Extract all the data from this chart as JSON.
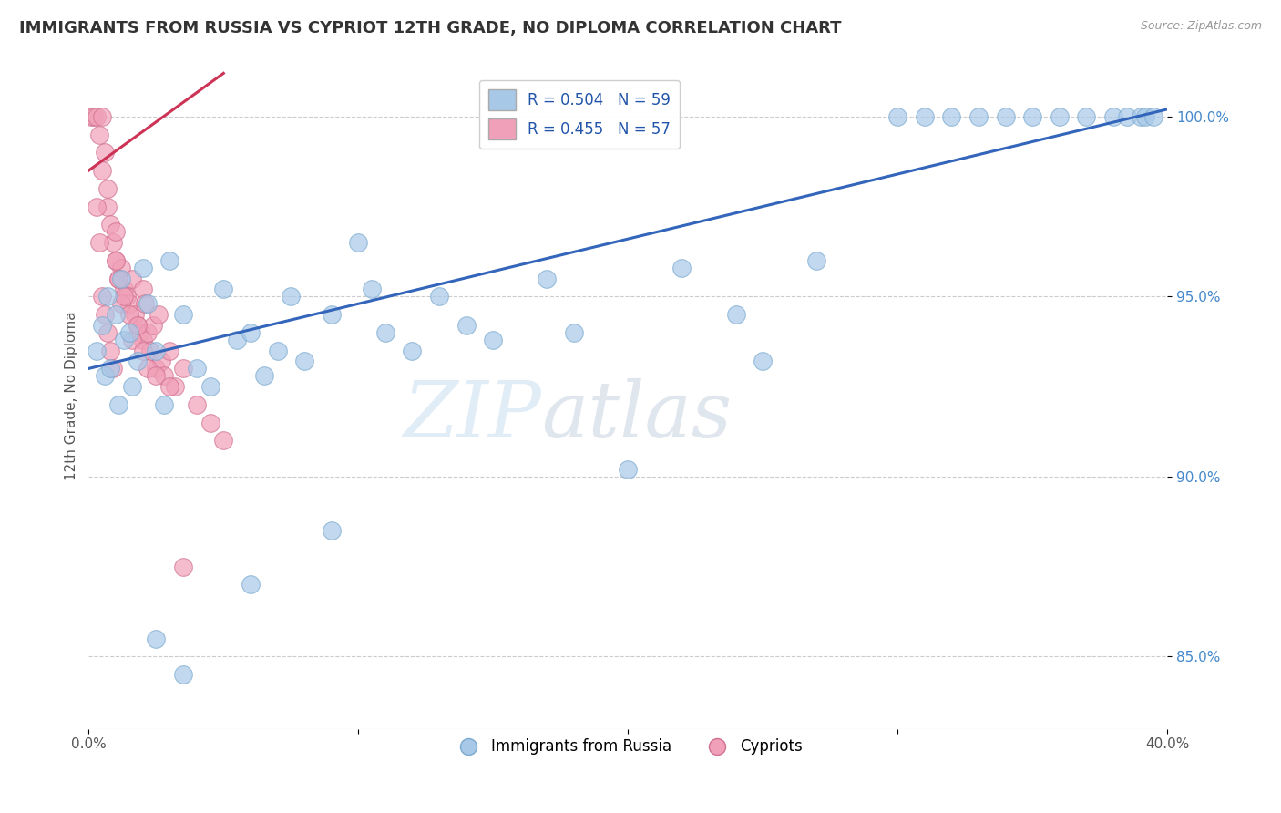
{
  "title": "IMMIGRANTS FROM RUSSIA VS CYPRIOT 12TH GRADE, NO DIPLOMA CORRELATION CHART",
  "source": "Source: ZipAtlas.com",
  "ylabel": "12th Grade, No Diploma",
  "xmin": 0.0,
  "xmax": 40.0,
  "ymin": 83.0,
  "ymax": 101.5,
  "yticks": [
    85.0,
    90.0,
    95.0,
    100.0
  ],
  "ytick_labels": [
    "85.0%",
    "90.0%",
    "95.0%",
    "100.0%"
  ],
  "xticks": [
    0.0,
    10.0,
    20.0,
    30.0,
    40.0
  ],
  "xtick_labels": [
    "0.0%",
    "",
    "",
    "",
    "40.0%"
  ],
  "blue_R": 0.504,
  "blue_N": 59,
  "pink_R": 0.455,
  "pink_N": 57,
  "blue_color": "#a8c8e8",
  "blue_edge_color": "#7aaad0",
  "pink_color": "#f0a0b8",
  "pink_edge_color": "#d07090",
  "blue_line_color": "#3366bb",
  "pink_line_color": "#cc3355",
  "legend_label_blue": "Immigrants from Russia",
  "legend_label_pink": "Cypriots",
  "watermark_zip": "ZIP",
  "watermark_atlas": "atlas",
  "blue_x": [
    0.3,
    0.5,
    0.6,
    0.7,
    0.8,
    1.0,
    1.1,
    1.2,
    1.3,
    1.5,
    1.6,
    1.8,
    2.0,
    2.2,
    2.5,
    2.8,
    3.0,
    3.5,
    4.0,
    4.5,
    5.0,
    5.5,
    6.0,
    6.5,
    7.0,
    7.5,
    8.0,
    9.0,
    10.0,
    10.5,
    11.0,
    12.0,
    13.0,
    14.0,
    15.0,
    17.0,
    18.0,
    20.0,
    22.0,
    24.0,
    25.0,
    27.0,
    30.0,
    31.0,
    32.0,
    33.0,
    34.0,
    35.0,
    36.0,
    37.0,
    38.0,
    38.5,
    39.0,
    39.2,
    39.5,
    2.5,
    3.5,
    6.0,
    9.0
  ],
  "blue_y": [
    93.5,
    94.2,
    92.8,
    95.0,
    93.0,
    94.5,
    92.0,
    95.5,
    93.8,
    94.0,
    92.5,
    93.2,
    95.8,
    94.8,
    93.5,
    92.0,
    96.0,
    94.5,
    93.0,
    92.5,
    95.2,
    93.8,
    94.0,
    92.8,
    93.5,
    95.0,
    93.2,
    94.5,
    96.5,
    95.2,
    94.0,
    93.5,
    95.0,
    94.2,
    93.8,
    95.5,
    94.0,
    90.2,
    95.8,
    94.5,
    93.2,
    96.0,
    100.0,
    100.0,
    100.0,
    100.0,
    100.0,
    100.0,
    100.0,
    100.0,
    100.0,
    100.0,
    100.0,
    100.0,
    100.0,
    85.5,
    84.5,
    87.0,
    88.5
  ],
  "pink_x": [
    0.1,
    0.2,
    0.3,
    0.4,
    0.5,
    0.5,
    0.6,
    0.7,
    0.7,
    0.8,
    0.9,
    1.0,
    1.0,
    1.1,
    1.2,
    1.3,
    1.4,
    1.5,
    1.6,
    1.7,
    1.8,
    1.9,
    2.0,
    2.0,
    2.1,
    2.2,
    2.3,
    2.4,
    2.5,
    2.6,
    2.7,
    2.8,
    3.0,
    3.2,
    3.5,
    4.0,
    4.5,
    5.0,
    0.3,
    0.4,
    0.5,
    0.6,
    0.7,
    0.8,
    0.9,
    1.0,
    1.1,
    1.2,
    1.3,
    1.5,
    1.6,
    1.8,
    2.0,
    2.2,
    2.5,
    3.0,
    3.5
  ],
  "pink_y": [
    100.0,
    100.0,
    100.0,
    99.5,
    100.0,
    98.5,
    99.0,
    98.0,
    97.5,
    97.0,
    96.5,
    96.8,
    96.0,
    95.5,
    95.8,
    95.2,
    95.0,
    94.8,
    95.5,
    94.5,
    94.2,
    94.0,
    93.8,
    95.2,
    94.8,
    94.0,
    93.5,
    94.2,
    93.0,
    94.5,
    93.2,
    92.8,
    93.5,
    92.5,
    93.0,
    92.0,
    91.5,
    91.0,
    97.5,
    96.5,
    95.0,
    94.5,
    94.0,
    93.5,
    93.0,
    96.0,
    95.5,
    94.8,
    95.0,
    94.5,
    93.8,
    94.2,
    93.5,
    93.0,
    92.8,
    92.5,
    87.5
  ],
  "blue_line_x0": 0.0,
  "blue_line_y0": 93.0,
  "blue_line_x1": 40.0,
  "blue_line_y1": 100.2,
  "pink_line_x0": 0.0,
  "pink_line_y0": 98.5,
  "pink_line_x1": 5.0,
  "pink_line_y1": 101.2
}
